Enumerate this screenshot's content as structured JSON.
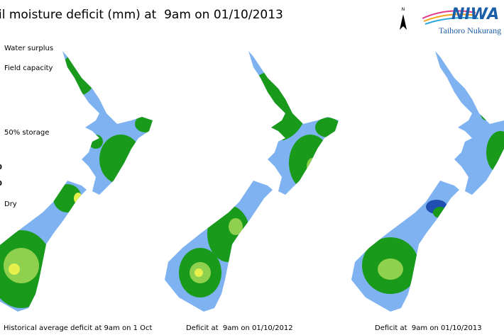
{
  "title": "il moisture deficit (mm) at  9am on 01/10/2013",
  "legend": [
    "Water surplus",
    "Field capacity",
    "50% storage",
    "0",
    "0",
    "Dry"
  ],
  "north_label": "N",
  "logo": {
    "name": "NIWA",
    "tagline": "Taihoro Nukurang"
  },
  "maps": [
    {
      "caption": "Historical average deficit at 9am on 1 Oct"
    },
    {
      "caption": "Deficit at  9am on 01/10/2012"
    },
    {
      "caption": "Deficit at  9am on 01/10/2013"
    }
  ]
}
